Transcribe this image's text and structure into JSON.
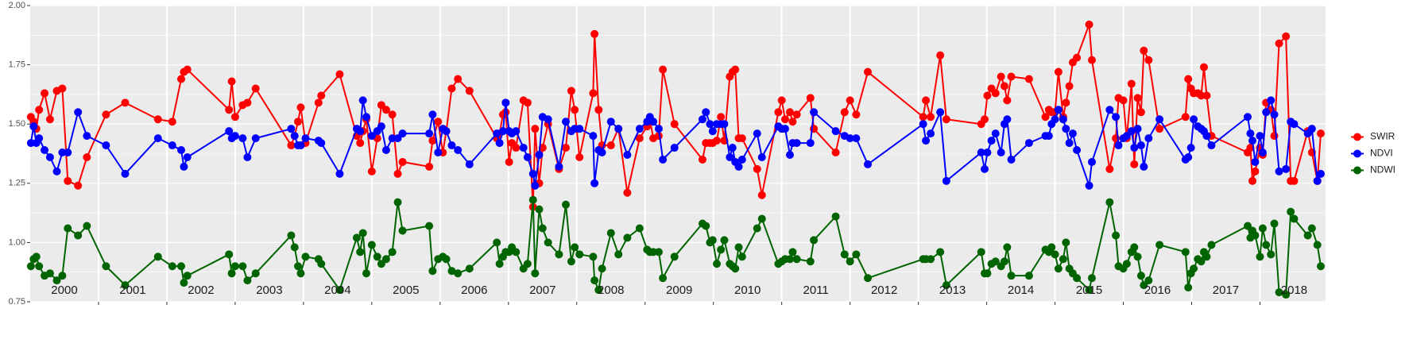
{
  "chart_data": {
    "type": "line",
    "x": [
      2000.01,
      2000.05,
      2000.09,
      2000.13,
      2000.21,
      2000.29,
      2000.39,
      2000.47,
      2000.55,
      2000.7,
      2000.83,
      2001.11,
      2001.39,
      2001.87,
      2002.08,
      2002.21,
      2002.25,
      2002.3,
      2002.91,
      2002.95,
      2003,
      2003.11,
      2003.18,
      2003.3,
      2003.82,
      2003.87,
      2003.92,
      2003.96,
      2004.03,
      2004.22,
      2004.26,
      2004.53,
      2004.78,
      2004.83,
      2004.87,
      2004.92,
      2005,
      2005.08,
      2005.14,
      2005.21,
      2005.3,
      2005.38,
      2005.45,
      2005.84,
      2005.89,
      2005.97,
      2006.04,
      2006.09,
      2006.17,
      2006.26,
      2006.43,
      2006.83,
      2006.87,
      2006.92,
      2006.96,
      2007.01,
      2007.05,
      2007.11,
      2007.22,
      2007.28,
      2007.36,
      2007.39,
      2007.45,
      2007.5,
      2007.58,
      2007.74,
      2007.84,
      2007.92,
      2007.97,
      2008.04,
      2008.24,
      2008.26,
      2008.32,
      2008.37,
      2008.5,
      2008.61,
      2008.74,
      2008.92,
      2009.03,
      2009.07,
      2009.12,
      2009.2,
      2009.26,
      2009.43,
      2009.84,
      2009.89,
      2009.95,
      2009.99,
      2010.05,
      2010.11,
      2010.16,
      2010.24,
      2010.28,
      2010.32,
      2010.37,
      2010.42,
      2010.64,
      2010.71,
      2010.95,
      2011,
      2011.05,
      2011.12,
      2011.16,
      2011.22,
      2011.42,
      2011.47,
      2011.79,
      2011.92,
      2012,
      2012.09,
      2012.26,
      2013.07,
      2013.11,
      2013.18,
      2013.32,
      2013.41,
      2013.92,
      2013.97,
      2014.01,
      2014.07,
      2014.13,
      2014.21,
      2014.26,
      2014.3,
      2014.36,
      2014.62,
      2014.86,
      2014.91,
      2014.95,
      2015,
      2015.05,
      2015.12,
      2015.16,
      2015.21,
      2015.26,
      2015.32,
      2015.5,
      2015.54,
      2015.8,
      2015.89,
      2015.93,
      2016,
      2016.05,
      2016.12,
      2016.16,
      2016.21,
      2016.26,
      2016.3,
      2016.37,
      2016.53,
      2016.91,
      2016.95,
      2016.99,
      2017.03,
      2017.09,
      2017.14,
      2017.18,
      2017.22,
      2017.29,
      2017.82,
      2017.86,
      2017.89,
      2017.93,
      2018,
      2018.04,
      2018.09,
      2018.16,
      2018.21,
      2018.28,
      2018.38,
      2018.45,
      2018.5,
      2018.7,
      2018.76,
      2018.84,
      2018.89
    ],
    "series": [
      {
        "name": "SWIR",
        "color": "#ff0000",
        "values": [
          1.53,
          1.51,
          1.48,
          1.56,
          1.63,
          1.52,
          1.64,
          1.65,
          1.26,
          1.24,
          1.36,
          1.54,
          1.59,
          1.52,
          1.51,
          1.69,
          1.72,
          1.73,
          1.56,
          1.68,
          1.53,
          1.58,
          1.59,
          1.65,
          1.41,
          1.45,
          1.51,
          1.57,
          1.42,
          1.59,
          1.62,
          1.71,
          1.45,
          1.42,
          1.47,
          1.52,
          1.3,
          1.44,
          1.58,
          1.56,
          1.54,
          1.29,
          1.34,
          1.32,
          1.43,
          1.51,
          1.38,
          1.47,
          1.65,
          1.69,
          1.64,
          1.44,
          1.46,
          1.54,
          1.55,
          1.34,
          1.42,
          1.4,
          1.6,
          1.59,
          1.15,
          1.48,
          1.25,
          1.4,
          1.5,
          1.31,
          1.4,
          1.64,
          1.56,
          1.36,
          1.63,
          1.88,
          1.56,
          1.41,
          1.41,
          1.48,
          1.21,
          1.44,
          1.49,
          1.52,
          1.44,
          1.45,
          1.73,
          1.5,
          1.35,
          1.42,
          1.42,
          1.42,
          1.43,
          1.53,
          1.43,
          1.7,
          1.72,
          1.73,
          1.44,
          1.44,
          1.31,
          1.2,
          1.55,
          1.6,
          1.52,
          1.55,
          1.51,
          1.54,
          1.61,
          1.48,
          1.38,
          1.55,
          1.6,
          1.54,
          1.72,
          1.53,
          1.6,
          1.53,
          1.79,
          1.52,
          1.5,
          1.52,
          1.62,
          1.65,
          1.63,
          1.7,
          1.66,
          1.6,
          1.7,
          1.69,
          1.53,
          1.56,
          1.55,
          1.55,
          1.72,
          1.53,
          1.59,
          1.66,
          1.76,
          1.78,
          1.92,
          1.77,
          1.31,
          1.44,
          1.61,
          1.6,
          1.44,
          1.67,
          1.33,
          1.61,
          1.55,
          1.81,
          1.77,
          1.48,
          1.53,
          1.69,
          1.65,
          1.63,
          1.63,
          1.62,
          1.74,
          1.62,
          1.45,
          1.38,
          1.4,
          1.26,
          1.3,
          1.4,
          1.37,
          1.59,
          1.56,
          1.45,
          1.84,
          1.87,
          1.26,
          1.26,
          1.47,
          1.38,
          1.26,
          1.46
        ]
      },
      {
        "name": "NDVI",
        "color": "#0000ff",
        "values": [
          1.42,
          1.49,
          1.42,
          1.44,
          1.39,
          1.36,
          1.3,
          1.38,
          1.38,
          1.55,
          1.45,
          1.41,
          1.29,
          1.44,
          1.41,
          1.39,
          1.32,
          1.36,
          1.47,
          1.44,
          1.45,
          1.44,
          1.36,
          1.44,
          1.48,
          1.45,
          1.41,
          1.41,
          1.44,
          1.43,
          1.42,
          1.29,
          1.48,
          1.47,
          1.6,
          1.53,
          1.45,
          1.47,
          1.49,
          1.39,
          1.44,
          1.44,
          1.46,
          1.46,
          1.54,
          1.38,
          1.48,
          1.47,
          1.41,
          1.39,
          1.33,
          1.46,
          1.42,
          1.47,
          1.59,
          1.47,
          1.46,
          1.47,
          1.4,
          1.36,
          1.29,
          1.24,
          1.37,
          1.53,
          1.52,
          1.32,
          1.51,
          1.47,
          1.48,
          1.48,
          1.45,
          1.25,
          1.39,
          1.38,
          1.51,
          1.48,
          1.37,
          1.48,
          1.51,
          1.53,
          1.51,
          1.48,
          1.35,
          1.4,
          1.52,
          1.55,
          1.5,
          1.47,
          1.5,
          1.5,
          1.5,
          1.36,
          1.4,
          1.34,
          1.32,
          1.35,
          1.46,
          1.36,
          1.49,
          1.48,
          1.48,
          1.37,
          1.42,
          1.42,
          1.42,
          1.55,
          1.47,
          1.45,
          1.44,
          1.44,
          1.33,
          1.5,
          1.43,
          1.46,
          1.55,
          1.26,
          1.38,
          1.31,
          1.38,
          1.43,
          1.46,
          1.38,
          1.5,
          1.52,
          1.35,
          1.42,
          1.45,
          1.45,
          1.5,
          1.52,
          1.56,
          1.52,
          1.48,
          1.42,
          1.46,
          1.39,
          1.24,
          1.34,
          1.56,
          1.53,
          1.41,
          1.44,
          1.45,
          1.47,
          1.4,
          1.48,
          1.41,
          1.32,
          1.44,
          1.52,
          1.35,
          1.36,
          1.4,
          1.52,
          1.49,
          1.48,
          1.47,
          1.45,
          1.41,
          1.53,
          1.46,
          1.43,
          1.34,
          1.45,
          1.38,
          1.55,
          1.6,
          1.54,
          1.3,
          1.31,
          1.51,
          1.5,
          1.46,
          1.48,
          1.26,
          1.29
        ]
      },
      {
        "name": "NDWI",
        "color": "#006400",
        "values": [
          0.9,
          0.93,
          0.94,
          0.9,
          0.86,
          0.87,
          0.84,
          0.86,
          1.06,
          1.03,
          1.07,
          0.9,
          0.82,
          0.94,
          0.9,
          0.9,
          0.83,
          0.86,
          0.95,
          0.87,
          0.9,
          0.9,
          0.84,
          0.87,
          1.03,
          0.98,
          0.9,
          0.87,
          0.94,
          0.93,
          0.91,
          0.8,
          1.02,
          0.96,
          1.04,
          0.87,
          0.99,
          0.94,
          0.91,
          0.93,
          0.96,
          1.17,
          1.05,
          1.07,
          0.88,
          0.93,
          0.94,
          0.93,
          0.88,
          0.87,
          0.89,
          1.0,
          0.91,
          0.94,
          0.96,
          0.96,
          0.98,
          0.96,
          0.89,
          0.91,
          1.18,
          0.87,
          1.14,
          1.06,
          1.0,
          0.95,
          1.16,
          0.92,
          0.98,
          0.95,
          0.94,
          0.84,
          0.8,
          0.89,
          1.04,
          0.95,
          1.02,
          1.06,
          0.97,
          0.96,
          0.96,
          0.96,
          0.85,
          0.94,
          1.08,
          1.07,
          1.0,
          1.01,
          0.91,
          0.97,
          1.01,
          0.91,
          0.9,
          0.89,
          0.98,
          0.94,
          1.06,
          1.1,
          0.91,
          0.92,
          0.93,
          0.93,
          0.96,
          0.93,
          0.92,
          1.01,
          1.11,
          0.95,
          0.92,
          0.95,
          0.85,
          0.93,
          0.93,
          0.93,
          0.96,
          0.82,
          0.96,
          0.87,
          0.87,
          0.91,
          0.92,
          0.9,
          0.92,
          0.98,
          0.86,
          0.86,
          0.97,
          0.96,
          0.98,
          0.95,
          0.89,
          0.93,
          1.0,
          0.89,
          0.87,
          0.85,
          0.8,
          0.85,
          1.17,
          1.03,
          0.9,
          0.89,
          0.91,
          0.96,
          0.98,
          0.94,
          0.86,
          0.82,
          0.84,
          0.99,
          0.96,
          0.81,
          0.87,
          0.89,
          0.93,
          0.92,
          0.96,
          0.94,
          0.99,
          1.07,
          1.02,
          1.05,
          1.03,
          0.94,
          1.06,
          0.99,
          0.95,
          1.08,
          0.79,
          0.78,
          1.13,
          1.1,
          1.03,
          1.06,
          0.99,
          0.9
        ]
      }
    ],
    "xlim": [
      2000,
      2018.96
    ],
    "xticks": [
      {
        "value": 2000.5,
        "label": "2000"
      },
      {
        "value": 2001.5,
        "label": "2001"
      },
      {
        "value": 2002.5,
        "label": "2002"
      },
      {
        "value": 2003.5,
        "label": "2003"
      },
      {
        "value": 2004.5,
        "label": "2004"
      },
      {
        "value": 2005.5,
        "label": "2005"
      },
      {
        "value": 2006.5,
        "label": "2006"
      },
      {
        "value": 2007.5,
        "label": "2007"
      },
      {
        "value": 2008.5,
        "label": "2008"
      },
      {
        "value": 2009.5,
        "label": "2009"
      },
      {
        "value": 2010.5,
        "label": "2010"
      },
      {
        "value": 2011.5,
        "label": "2011"
      },
      {
        "value": 2012.5,
        "label": "2012"
      },
      {
        "value": 2013.5,
        "label": "2013"
      },
      {
        "value": 2014.5,
        "label": "2014"
      },
      {
        "value": 2015.5,
        "label": "2015"
      },
      {
        "value": 2016.5,
        "label": "2016"
      },
      {
        "value": 2017.5,
        "label": "2017"
      },
      {
        "value": 2018.5,
        "label": "2018"
      }
    ],
    "xgrid": [
      2001,
      2002,
      2003,
      2004,
      2005,
      2006,
      2007,
      2008,
      2009,
      2010,
      2011,
      2012,
      2013,
      2014,
      2015,
      2016,
      2017,
      2018
    ],
    "ylim": [
      0.75,
      2.0
    ],
    "yticks": [
      0.75,
      {
        "value": 1.0,
        "label": "1.00"
      },
      1.25,
      {
        "value": 1.5,
        "label": "1.50"
      },
      1.75,
      {
        "value": 2.0,
        "label": "2.00"
      }
    ],
    "yminor": [
      0.875,
      1.125,
      1.375,
      1.625,
      1.875
    ],
    "grid": true,
    "legend": "right"
  }
}
